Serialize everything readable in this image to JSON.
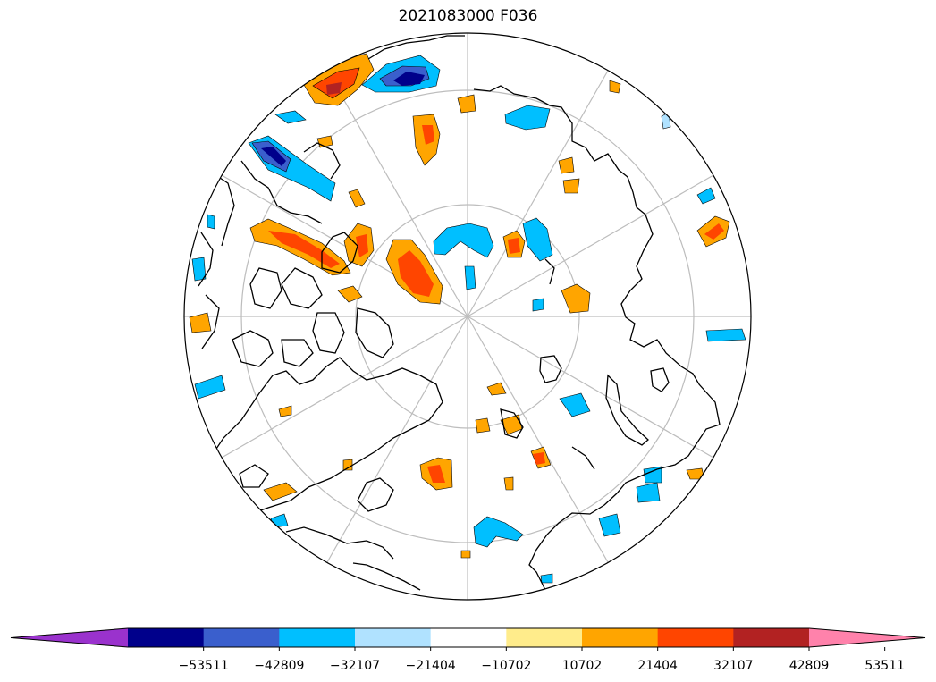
{
  "title": "2021083000 F036",
  "map": {
    "projection": "north-polar-stereographic",
    "graticule": "lat/lon grid lines",
    "coastlines": true
  },
  "colorbar": {
    "extend": "both",
    "ticks": [
      "−53511",
      "−42809",
      "−32107",
      "−21404",
      "−10702",
      "10702",
      "21404",
      "32107",
      "42809",
      "53511"
    ],
    "colors": [
      "#9a32cd",
      "#00008b",
      "#3a5fcd",
      "#00bfff",
      "#b0e2ff",
      "#ffffff",
      "#ffec8b",
      "#ffa500",
      "#ff4500",
      "#b22222",
      "#ff82ab"
    ]
  }
}
